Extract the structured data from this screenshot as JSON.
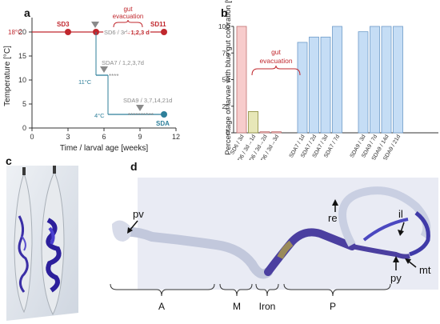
{
  "panels": {
    "a": "a",
    "b": "b",
    "c": "c",
    "d": "d"
  },
  "panel_a": {
    "ylabel": "Temperature [°C]",
    "xlabel": "Time / larval age  [weeks]",
    "xticks": [
      "0",
      "3",
      "6",
      "9",
      "12"
    ],
    "yticks": [
      "0",
      "5",
      "10",
      "15",
      "20"
    ],
    "temp_18": "18°C",
    "temp_11": "11°C",
    "temp_4": "4°C",
    "sd3": "SD3",
    "sd6_label": "SD6 / 3d",
    "sd6_evac": "→1,2,3 d",
    "sd11": "SD11",
    "sda7": "SDA7 / 1,2,3,7d",
    "sda9": "SDA9 / 3,7,14,21d",
    "sda": "SDA",
    "gut_evacuation": "gut\nevacuation",
    "stars_sda7": "****",
    "stars_sda9": "*******^**",
    "colors": {
      "red": "#c0272d",
      "gray": "#8a8a8a",
      "teal": "#2e7f9a"
    }
  },
  "chart_data": {
    "type": "bar",
    "ylabel": "Percentage of larvae with blue gut coloration [%]",
    "ylim": [
      0,
      100
    ],
    "yticks": [
      "0",
      "25",
      "50",
      "75",
      "100"
    ],
    "annotation": "gut\nevacuation",
    "categories": [
      "SD6 / 3d",
      "SD6 / 3d→1d",
      "SD6 / 3d→2d",
      "SD6 / 3d→3d",
      "SDA7 / 1d",
      "SDA7 / 2d",
      "SDA7 / 3d",
      "SDA7 / 7d",
      "SDA9 / 3d",
      "SDA9 / 7d",
      "SDA9 / 14d",
      "SDA9 / 21d"
    ],
    "values": [
      100,
      20,
      1,
      1,
      85,
      90,
      90,
      100,
      95,
      100,
      100,
      100
    ],
    "colors": [
      "#f7cccc",
      "#e7e7b8",
      "#f7cccc",
      "#f7cccc",
      "#c5ddf5",
      "#c5ddf5",
      "#c5ddf5",
      "#c5ddf5",
      "#c5ddf5",
      "#c5ddf5",
      "#c5ddf5",
      "#c5ddf5"
    ]
  },
  "panel_d": {
    "labels": {
      "pv": "pv",
      "re": "re",
      "il": "il",
      "py": "py",
      "mt": "mt"
    },
    "regions": [
      "A",
      "M",
      "Iron",
      "P"
    ]
  }
}
